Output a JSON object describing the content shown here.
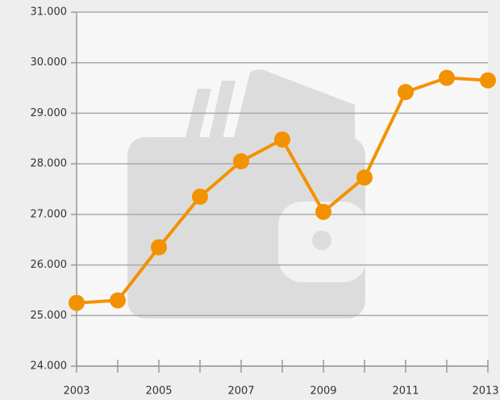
{
  "chart_data": {
    "type": "line",
    "x": [
      2003,
      2004,
      2005,
      2006,
      2007,
      2008,
      2009,
      2010,
      2011,
      2012,
      2013
    ],
    "series": [
      {
        "color": "#f39200",
        "values": [
          25250,
          25300,
          26350,
          27350,
          28050,
          28480,
          27050,
          27730,
          29420,
          29700,
          29650
        ]
      }
    ],
    "xlim": [
      2003,
      2013
    ],
    "xticks": [
      2003,
      2005,
      2007,
      2009,
      2011,
      2013
    ],
    "xminorticks": [
      2004,
      2006,
      2008,
      2010,
      2012
    ],
    "ylim": [
      24000,
      31000
    ],
    "yticks": [
      {
        "value": 24000,
        "label": "24.000"
      },
      {
        "value": 25000,
        "label": "25.000"
      },
      {
        "value": 26000,
        "label": "26.000"
      },
      {
        "value": 27000,
        "label": "27.000"
      },
      {
        "value": 28000,
        "label": "28.000"
      },
      {
        "value": 29000,
        "label": "29.000"
      },
      {
        "value": 30000,
        "label": "30.000"
      },
      {
        "value": 31000,
        "label": "31.000"
      }
    ],
    "grid": true
  }
}
